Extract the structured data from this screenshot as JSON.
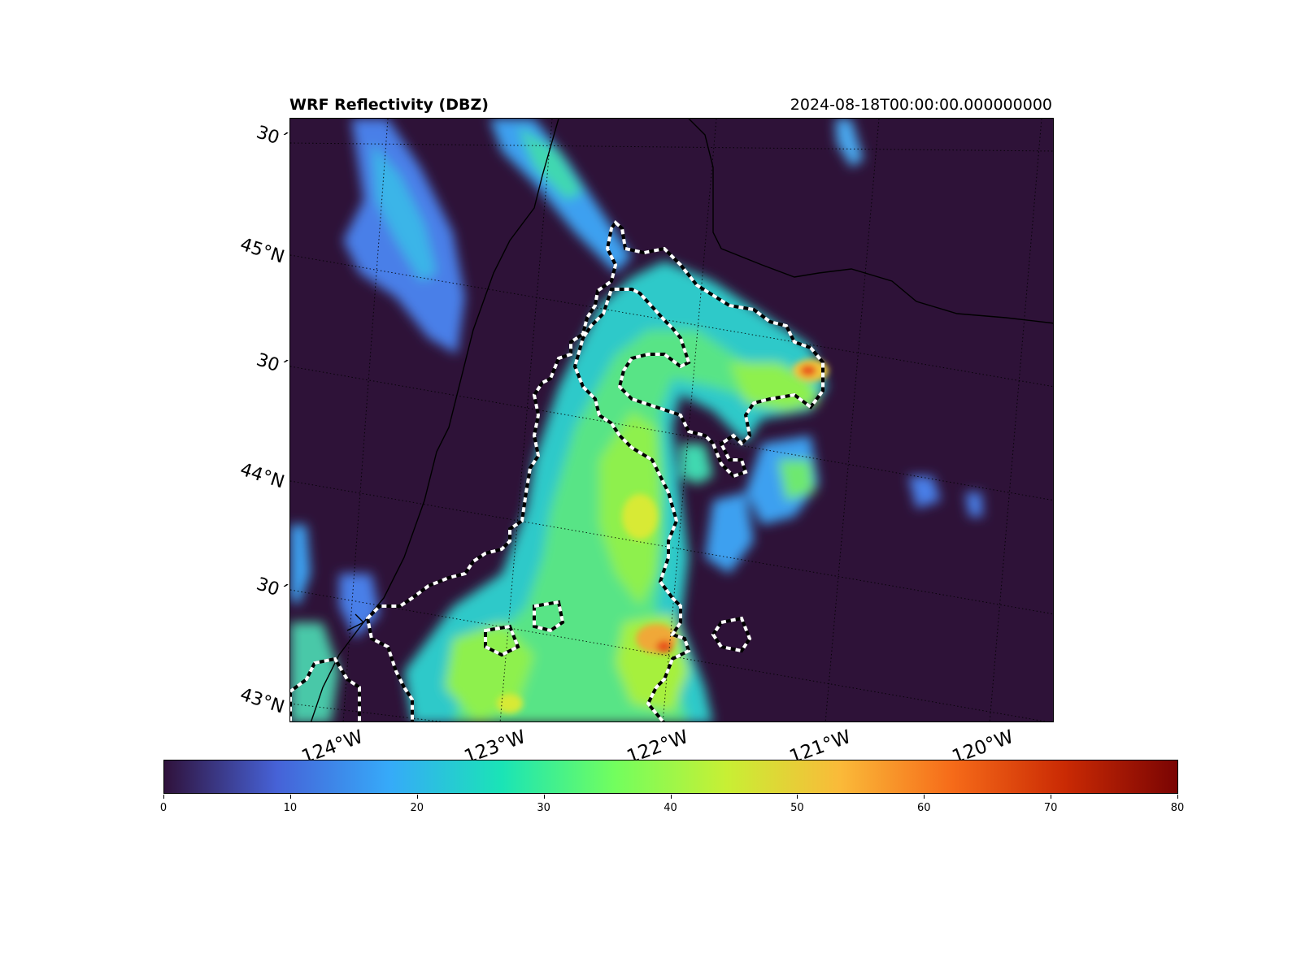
{
  "header": {
    "title": "WRF Reflectivity (DBZ)",
    "timestamp": "2024-08-18T00:00:00.000000000"
  },
  "map": {
    "background_color": "#2e1238",
    "lat_labels": [
      "30´",
      "45°N",
      "30´",
      "44°N",
      "30´",
      "43°N"
    ],
    "lon_labels": [
      "124°W",
      "123°W",
      "122°W",
      "121°W",
      "120°W"
    ],
    "contour_style": "black-white dashed"
  },
  "colorbar": {
    "min": 0,
    "max": 80,
    "ticks": [
      "0",
      "10",
      "20",
      "30",
      "40",
      "50",
      "60",
      "70",
      "80"
    ],
    "colormap": "turbo",
    "colors": [
      "#30123b",
      "#4662d7",
      "#36aaf9",
      "#1ae4b6",
      "#72fe5e",
      "#c8ef34",
      "#faba39",
      "#f66b19",
      "#ca2a04",
      "#7a0403"
    ]
  }
}
